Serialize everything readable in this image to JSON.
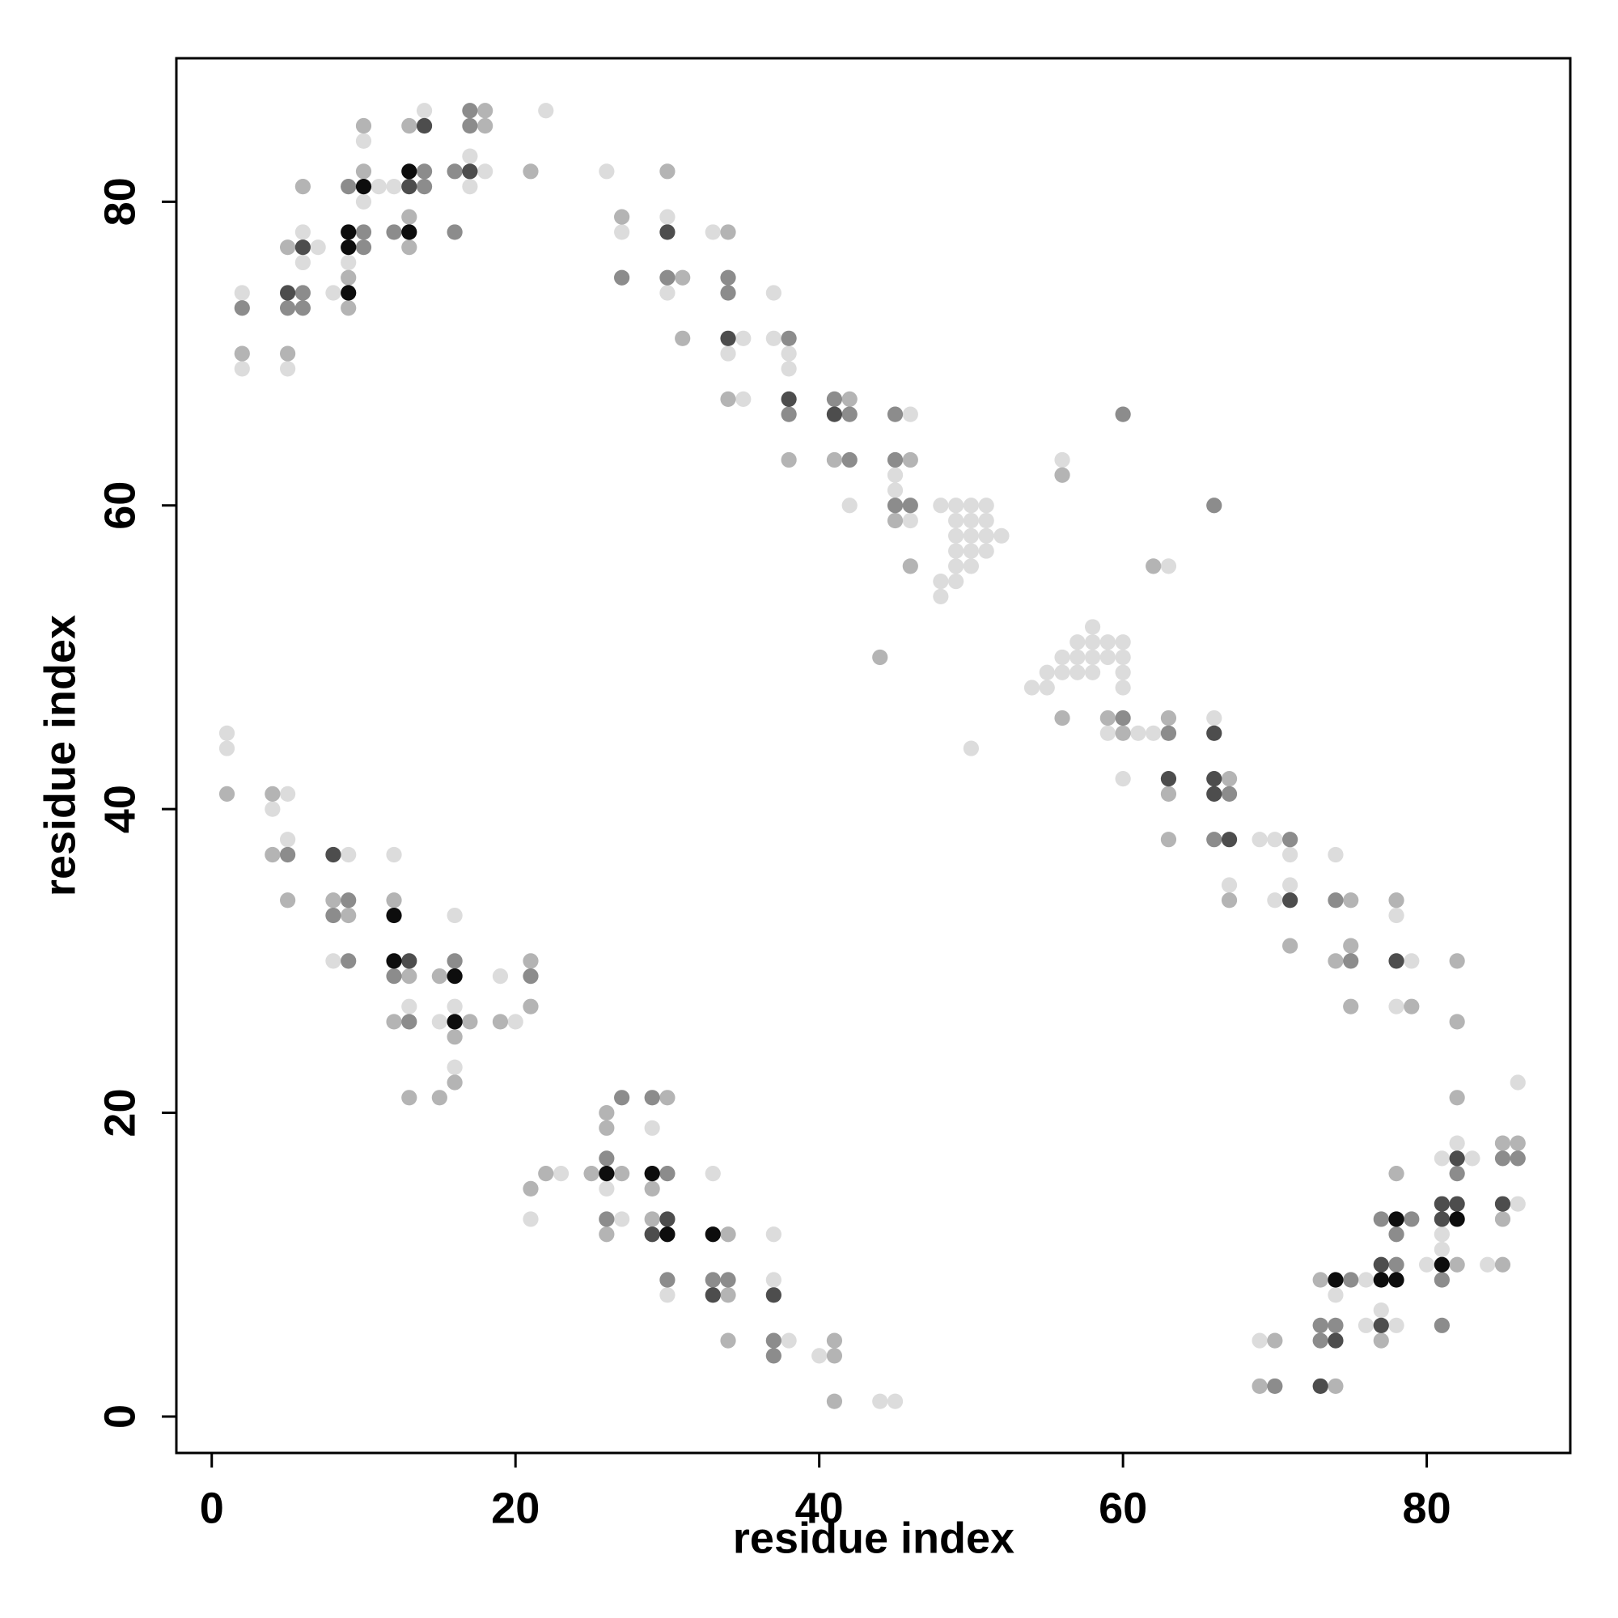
{
  "chart_data": {
    "type": "scatter",
    "xlabel": "residue index",
    "ylabel": "residue index",
    "xlim": [
      -2.33,
      89.45
    ],
    "ylim": [
      -2.4,
      89.45
    ],
    "xticks": [
      0,
      20,
      40,
      60,
      80
    ],
    "yticks": [
      0,
      20,
      40,
      60,
      80
    ],
    "grid": false,
    "series": [
      {
        "color": "#dcdcdc",
        "x": [
          1,
          1,
          2,
          2,
          4,
          5,
          5,
          5,
          6,
          6,
          7,
          8,
          8,
          9,
          9,
          10,
          10,
          11,
          12,
          12,
          13,
          14,
          15,
          16,
          16,
          16,
          17,
          17,
          18,
          19,
          20,
          21,
          22,
          23,
          26,
          26,
          27,
          27,
          29,
          30,
          30,
          30,
          33,
          33,
          34,
          35,
          35,
          37,
          37,
          37,
          37,
          38,
          38,
          38,
          40,
          42,
          44,
          45,
          45,
          45,
          46,
          46,
          48,
          48,
          48,
          49,
          49,
          49,
          49,
          49,
          49,
          50,
          50,
          50,
          50,
          50,
          50,
          51,
          51,
          51,
          51,
          52,
          54,
          55,
          55,
          56,
          56,
          56,
          57,
          57,
          57,
          58,
          58,
          58,
          58,
          59,
          59,
          59,
          60,
          60,
          60,
          60,
          60,
          61,
          62,
          63,
          66,
          67,
          69,
          69,
          70,
          70,
          71,
          71,
          74,
          74,
          76,
          76,
          77,
          78,
          78,
          78,
          79,
          80,
          81,
          81,
          81,
          82,
          83,
          84,
          86,
          86
        ],
        "y": [
          45,
          44,
          74,
          69,
          40,
          41,
          38,
          69,
          78,
          76,
          77,
          74,
          30,
          76,
          37,
          84,
          80,
          81,
          81,
          37,
          27,
          86,
          26,
          33,
          27,
          23,
          83,
          81,
          82,
          29,
          26,
          13,
          86,
          16,
          82,
          15,
          78,
          13,
          19,
          79,
          74,
          8,
          78,
          16,
          70,
          71,
          67,
          74,
          71,
          12,
          9,
          70,
          69,
          5,
          4,
          60,
          1,
          1,
          62,
          61,
          66,
          59,
          60,
          55,
          54,
          60,
          59,
          58,
          57,
          56,
          55,
          60,
          59,
          58,
          57,
          56,
          44,
          60,
          59,
          58,
          57,
          58,
          48,
          49,
          48,
          63,
          50,
          49,
          51,
          50,
          49,
          52,
          51,
          50,
          49,
          51,
          50,
          45,
          51,
          50,
          49,
          48,
          42,
          45,
          45,
          56,
          46,
          35,
          38,
          5,
          38,
          34,
          37,
          35,
          37,
          8,
          9,
          6,
          7,
          33,
          27,
          6,
          30,
          10,
          17,
          12,
          11,
          18,
          17,
          10,
          22,
          14
        ]
      },
      {
        "color": "#b4b4b4",
        "x": [
          1,
          2,
          4,
          4,
          5,
          5,
          5,
          6,
          8,
          9,
          9,
          9,
          10,
          10,
          12,
          12,
          13,
          13,
          13,
          13,
          13,
          15,
          15,
          16,
          16,
          17,
          18,
          18,
          19,
          21,
          21,
          21,
          21,
          22,
          25,
          26,
          26,
          26,
          27,
          27,
          29,
          29,
          30,
          30,
          31,
          31,
          34,
          34,
          34,
          34,
          34,
          38,
          41,
          41,
          41,
          41,
          42,
          44,
          45,
          46,
          46,
          56,
          56,
          59,
          60,
          62,
          63,
          63,
          63,
          67,
          67,
          69,
          70,
          71,
          73,
          74,
          74,
          75,
          75,
          75,
          77,
          78,
          78,
          79,
          82,
          82,
          82,
          82,
          85,
          85,
          85,
          86
        ],
        "y": [
          41,
          70,
          41,
          37,
          34,
          77,
          70,
          81,
          34,
          75,
          73,
          33,
          85,
          82,
          34,
          26,
          85,
          79,
          77,
          29,
          21,
          29,
          21,
          25,
          22,
          26,
          86,
          85,
          26,
          82,
          30,
          27,
          15,
          16,
          16,
          20,
          19,
          12,
          79,
          16,
          15,
          13,
          82,
          21,
          75,
          71,
          78,
          67,
          12,
          8,
          5,
          63,
          63,
          5,
          4,
          1,
          67,
          50,
          59,
          63,
          56,
          62,
          46,
          46,
          45,
          56,
          46,
          41,
          38,
          42,
          34,
          2,
          5,
          31,
          9,
          30,
          2,
          34,
          31,
          27,
          5,
          34,
          16,
          27,
          30,
          26,
          21,
          10,
          18,
          13,
          10,
          18
        ]
      },
      {
        "color": "#8c8c8c",
        "x": [
          2,
          5,
          5,
          6,
          6,
          8,
          9,
          9,
          9,
          10,
          10,
          12,
          12,
          13,
          14,
          14,
          16,
          16,
          16,
          17,
          17,
          21,
          26,
          26,
          27,
          27,
          29,
          30,
          30,
          30,
          33,
          34,
          34,
          34,
          37,
          37,
          38,
          38,
          41,
          42,
          42,
          45,
          45,
          45,
          46,
          60,
          60,
          63,
          66,
          66,
          67,
          70,
          71,
          73,
          73,
          74,
          74,
          75,
          75,
          77,
          78,
          78,
          79,
          81,
          81,
          82,
          85,
          86
        ],
        "y": [
          73,
          73,
          37,
          74,
          73,
          33,
          81,
          34,
          30,
          78,
          77,
          78,
          29,
          26,
          82,
          81,
          82,
          78,
          30,
          86,
          85,
          29,
          17,
          13,
          75,
          21,
          21,
          75,
          16,
          9,
          9,
          75,
          74,
          9,
          5,
          4,
          71,
          66,
          67,
          66,
          63,
          66,
          63,
          60,
          60,
          66,
          46,
          45,
          60,
          38,
          41,
          2,
          38,
          6,
          5,
          34,
          6,
          30,
          9,
          13,
          12,
          10,
          13,
          9,
          6,
          16,
          17,
          17
        ]
      },
      {
        "color": "#4d4d4d",
        "x": [
          5,
          6,
          8,
          13,
          14,
          13,
          17,
          29,
          30,
          30,
          33,
          34,
          37,
          38,
          41,
          63,
          66,
          66,
          66,
          67,
          71,
          73,
          74,
          77,
          77,
          78,
          81,
          81,
          82,
          82,
          85
        ],
        "y": [
          74,
          77,
          37,
          81,
          85,
          30,
          82,
          12,
          78,
          13,
          8,
          71,
          8,
          67,
          66,
          42,
          45,
          42,
          41,
          38,
          34,
          2,
          5,
          10,
          6,
          30,
          14,
          13,
          17,
          14,
          14
        ]
      },
      {
        "color": "#0d0d0d",
        "x": [
          9,
          9,
          9,
          10,
          12,
          12,
          13,
          13,
          16,
          16,
          26,
          29,
          30,
          33,
          74,
          77,
          78,
          78,
          81,
          82
        ],
        "y": [
          78,
          77,
          74,
          81,
          33,
          30,
          82,
          78,
          29,
          26,
          16,
          16,
          12,
          12,
          9,
          9,
          13,
          9,
          10,
          13
        ]
      }
    ]
  }
}
